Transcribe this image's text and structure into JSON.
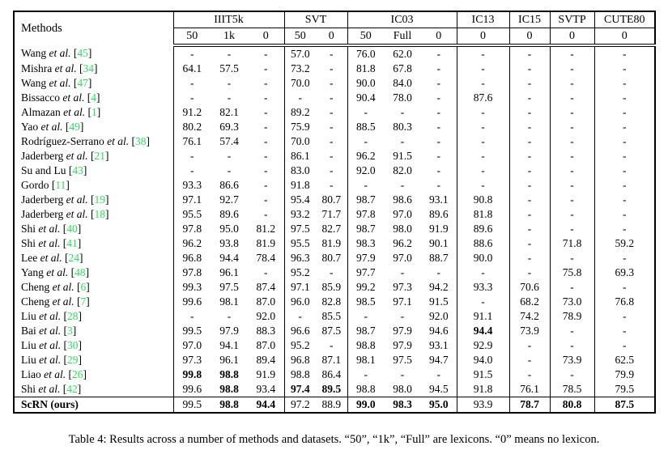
{
  "caption": "Table 4: Results across a number of methods and datasets. “50”, “1k”, “Full” are lexicons. “0” means no lexicon.",
  "colors": {
    "ref_green": "#2ee05a"
  },
  "table": {
    "methods_label": "Methods",
    "groups": [
      {
        "label": "IIIT5k",
        "span": 3
      },
      {
        "label": "SVT",
        "span": 2
      },
      {
        "label": "IC03",
        "span": 3
      },
      {
        "label": "IC13",
        "span": 1
      },
      {
        "label": "IC15",
        "span": 1
      },
      {
        "label": "SVTP",
        "span": 1
      },
      {
        "label": "CUTE80",
        "span": 1
      }
    ],
    "subheaders": [
      "50",
      "1k",
      "0",
      "50",
      "0",
      "50",
      "Full",
      "0",
      "0",
      "0",
      "0",
      "0"
    ],
    "rows": [
      {
        "name": "Wang",
        "etal": true,
        "ref": "45",
        "values": [
          "-",
          "-",
          "-",
          "57.0",
          "-",
          "76.0",
          "62.0",
          "-",
          "-",
          "-",
          "-",
          "-"
        ],
        "bold": []
      },
      {
        "name": "Mishra",
        "etal": true,
        "ref": "34",
        "values": [
          "64.1",
          "57.5",
          "-",
          "73.2",
          "-",
          "81.8",
          "67.8",
          "-",
          "-",
          "-",
          "-",
          "-"
        ],
        "bold": []
      },
      {
        "name": "Wang",
        "etal": true,
        "ref": "47",
        "values": [
          "-",
          "-",
          "-",
          "70.0",
          "-",
          "90.0",
          "84.0",
          "-",
          "-",
          "-",
          "-",
          "-"
        ],
        "bold": []
      },
      {
        "name": "Bissacco",
        "etal": true,
        "ref": "4",
        "values": [
          "-",
          "-",
          "-",
          "-",
          "-",
          "90.4",
          "78.0",
          "-",
          "87.6",
          "-",
          "-",
          "-"
        ],
        "bold": []
      },
      {
        "name": "Almazan",
        "etal": true,
        "ref": "1",
        "values": [
          "91.2",
          "82.1",
          "-",
          "89.2",
          "-",
          "-",
          "-",
          "-",
          "-",
          "-",
          "-",
          "-"
        ],
        "bold": []
      },
      {
        "name": "Yao",
        "etal": true,
        "ref": "49",
        "values": [
          "80.2",
          "69.3",
          "-",
          "75.9",
          "-",
          "88.5",
          "80.3",
          "-",
          "-",
          "-",
          "-",
          "-"
        ],
        "bold": []
      },
      {
        "name": "Rodríguez-Serrano",
        "etal": true,
        "ref": "38",
        "values": [
          "76.1",
          "57.4",
          "-",
          "70.0",
          "-",
          "-",
          "-",
          "-",
          "-",
          "-",
          "-",
          "-"
        ],
        "bold": []
      },
      {
        "name": "Jaderberg",
        "etal": true,
        "ref": "21",
        "values": [
          "-",
          "-",
          "-",
          "86.1",
          "-",
          "96.2",
          "91.5",
          "-",
          "-",
          "-",
          "-",
          "-"
        ],
        "bold": []
      },
      {
        "name": "Su and Lu",
        "etal": false,
        "ref": "43",
        "values": [
          "-",
          "-",
          "-",
          "83.0",
          "-",
          "92.0",
          "82.0",
          "-",
          "-",
          "-",
          "-",
          "-"
        ],
        "bold": []
      },
      {
        "name": "Gordo",
        "etal": false,
        "ref": "11",
        "values": [
          "93.3",
          "86.6",
          "-",
          "91.8",
          "-",
          "-",
          "-",
          "-",
          "-",
          "-",
          "-",
          "-"
        ],
        "bold": []
      },
      {
        "name": "Jaderberg",
        "etal": true,
        "ref": "19",
        "values": [
          "97.1",
          "92.7",
          "-",
          "95.4",
          "80.7",
          "98.7",
          "98.6",
          "93.1",
          "90.8",
          "-",
          "-",
          "-"
        ],
        "bold": []
      },
      {
        "name": "Jaderberg",
        "etal": true,
        "ref": "18",
        "values": [
          "95.5",
          "89.6",
          "-",
          "93.2",
          "71.7",
          "97.8",
          "97.0",
          "89.6",
          "81.8",
          "-",
          "-",
          "-"
        ],
        "bold": []
      },
      {
        "name": "Shi",
        "etal": true,
        "ref": "40",
        "values": [
          "97.8",
          "95.0",
          "81.2",
          "97.5",
          "82.7",
          "98.7",
          "98.0",
          "91.9",
          "89.6",
          "-",
          "-",
          "-"
        ],
        "bold": []
      },
      {
        "name": "Shi",
        "etal": true,
        "ref": "41",
        "values": [
          "96.2",
          "93.8",
          "81.9",
          "95.5",
          "81.9",
          "98.3",
          "96.2",
          "90.1",
          "88.6",
          "-",
          "71.8",
          "59.2"
        ],
        "bold": []
      },
      {
        "name": "Lee",
        "etal": true,
        "ref": "24",
        "values": [
          "96.8",
          "94.4",
          "78.4",
          "96.3",
          "80.7",
          "97.9",
          "97.0",
          "88.7",
          "90.0",
          "-",
          "-",
          "-"
        ],
        "bold": []
      },
      {
        "name": "Yang",
        "etal": true,
        "ref": "48",
        "values": [
          "97.8",
          "96.1",
          "-",
          "95.2",
          "-",
          "97.7",
          "-",
          "-",
          "-",
          "-",
          "75.8",
          "69.3"
        ],
        "bold": []
      },
      {
        "name": "Cheng",
        "etal": true,
        "ref": "6",
        "values": [
          "99.3",
          "97.5",
          "87.4",
          "97.1",
          "85.9",
          "99.2",
          "97.3",
          "94.2",
          "93.3",
          "70.6",
          "-",
          "-"
        ],
        "bold": []
      },
      {
        "name": "Cheng",
        "etal": true,
        "ref": "7",
        "values": [
          "99.6",
          "98.1",
          "87.0",
          "96.0",
          "82.8",
          "98.5",
          "97.1",
          "91.5",
          "-",
          "68.2",
          "73.0",
          "76.8"
        ],
        "bold": []
      },
      {
        "name": "Liu",
        "etal": true,
        "ref": "28",
        "values": [
          "-",
          "-",
          "92.0",
          "-",
          "85.5",
          "-",
          "-",
          "92.0",
          "91.1",
          "74.2",
          "78.9",
          "-"
        ],
        "bold": []
      },
      {
        "name": "Bai",
        "etal": true,
        "ref": "3",
        "values": [
          "99.5",
          "97.9",
          "88.3",
          "96.6",
          "87.5",
          "98.7",
          "97.9",
          "94.6",
          "94.4",
          "73.9",
          "-",
          "-"
        ],
        "bold": [
          8
        ]
      },
      {
        "name": "Liu",
        "etal": true,
        "ref": "30",
        "values": [
          "97.0",
          "94.1",
          "87.0",
          "95.2",
          "-",
          "98.8",
          "97.9",
          "93.1",
          "92.9",
          "-",
          "-",
          "-"
        ],
        "bold": []
      },
      {
        "name": "Liu",
        "etal": true,
        "ref": "29",
        "values": [
          "97.3",
          "96.1",
          "89.4",
          "96.8",
          "87.1",
          "98.1",
          "97.5",
          "94.7",
          "94.0",
          "-",
          "73.9",
          "62.5"
        ],
        "bold": []
      },
      {
        "name": "Liao",
        "etal": true,
        "ref": "26",
        "values": [
          "99.8",
          "98.8",
          "91.9",
          "98.8",
          "86.4",
          "-",
          "-",
          "-",
          "91.5",
          "-",
          "-",
          "79.9"
        ],
        "bold": [
          0,
          1
        ]
      },
      {
        "name": "Shi",
        "etal": true,
        "ref": "42",
        "values": [
          "99.6",
          "98.8",
          "93.4",
          "97.4",
          "89.5",
          "98.8",
          "98.0",
          "94.5",
          "91.8",
          "76.1",
          "78.5",
          "79.5"
        ],
        "bold": [
          1,
          3,
          4
        ]
      },
      {
        "name": "ScRN (ours)",
        "etal": false,
        "ref": null,
        "bold_method": true,
        "total": true,
        "values": [
          "99.5",
          "98.8",
          "94.4",
          "97.2",
          "88.9",
          "99.0",
          "98.3",
          "95.0",
          "93.9",
          "78.7",
          "80.8",
          "87.5"
        ],
        "bold": [
          1,
          2,
          5,
          6,
          7,
          9,
          10,
          11
        ]
      }
    ]
  }
}
